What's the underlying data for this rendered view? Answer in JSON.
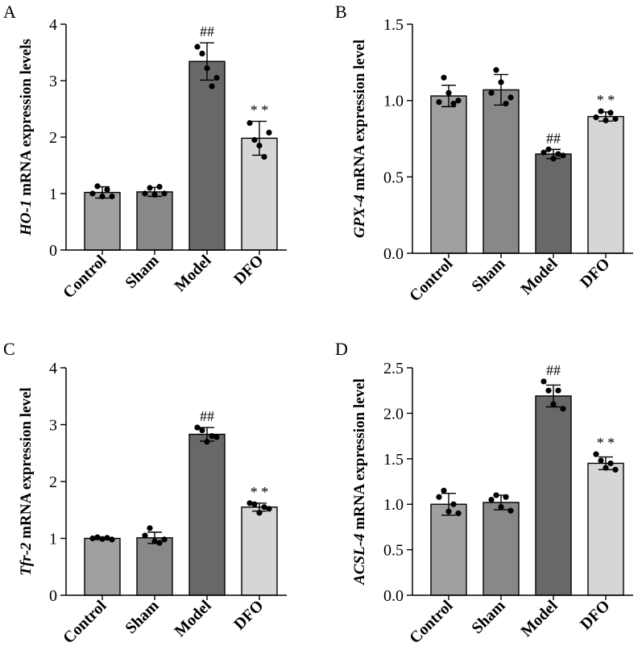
{
  "figure": {
    "panels": [
      "A",
      "B",
      "C",
      "D"
    ]
  },
  "chart_data": [
    {
      "panel": "A",
      "type": "bar",
      "gene": "HO-1",
      "ylabel_rest": " mRNA expression levels",
      "categories": [
        "Control",
        "Sham",
        "Model",
        "DFO"
      ],
      "values": [
        1.02,
        1.03,
        3.34,
        1.98
      ],
      "errors": [
        0.1,
        0.08,
        0.33,
        0.3
      ],
      "points": [
        [
          1.0,
          1.13,
          0.95,
          1.07,
          0.95
        ],
        [
          1.0,
          1.1,
          0.98,
          1.12,
          1.0
        ],
        [
          3.6,
          3.48,
          3.22,
          2.9,
          3.05
        ],
        [
          2.25,
          1.95,
          1.85,
          1.65,
          2.08
        ]
      ],
      "annotations": [
        "",
        "",
        "##",
        "* *"
      ],
      "colors": [
        "#a0a0a0",
        "#888888",
        "#686868",
        "#d6d6d6"
      ],
      "ylim": [
        0,
        4
      ],
      "yticks": [
        0,
        1,
        2,
        3,
        4
      ],
      "yticklabels": [
        "0",
        "1",
        "2",
        "3",
        "4"
      ]
    },
    {
      "panel": "B",
      "type": "bar",
      "gene": "GPX-4",
      "ylabel_rest": " mRNA expression level",
      "categories": [
        "Control",
        "Sham",
        "Model",
        "DFO"
      ],
      "values": [
        1.03,
        1.07,
        0.65,
        0.895
      ],
      "errors": [
        0.07,
        0.1,
        0.03,
        0.03
      ],
      "points": [
        [
          0.99,
          1.15,
          1.05,
          0.98,
          1.0
        ],
        [
          1.05,
          1.2,
          1.12,
          0.98,
          1.02
        ],
        [
          0.66,
          0.68,
          0.62,
          0.65,
          0.64
        ],
        [
          0.89,
          0.93,
          0.87,
          0.92,
          0.88
        ]
      ],
      "annotations": [
        "",
        "",
        "##",
        "* *"
      ],
      "colors": [
        "#a0a0a0",
        "#888888",
        "#686868",
        "#d6d6d6"
      ],
      "ylim": [
        0,
        1.5
      ],
      "yticks": [
        0,
        0.5,
        1.0,
        1.5
      ],
      "yticklabels": [
        "0.0",
        "0.5",
        "1.0",
        "1.5"
      ]
    },
    {
      "panel": "C",
      "type": "bar",
      "gene": "Tfr-2",
      "ylabel_rest": " mRNA expression level",
      "categories": [
        "Control",
        "Sham",
        "Model",
        "DFO"
      ],
      "values": [
        1.0,
        1.01,
        2.83,
        1.55
      ],
      "errors": [
        0.02,
        0.1,
        0.12,
        0.07
      ],
      "points": [
        [
          1.0,
          1.02,
          0.99,
          1.01,
          0.98
        ],
        [
          1.05,
          1.18,
          0.95,
          0.92,
          0.98
        ],
        [
          2.95,
          2.9,
          2.7,
          2.8,
          2.78
        ],
        [
          1.62,
          1.6,
          1.45,
          1.55,
          1.52
        ]
      ],
      "annotations": [
        "",
        "",
        "##",
        "* *"
      ],
      "colors": [
        "#a0a0a0",
        "#888888",
        "#686868",
        "#d6d6d6"
      ],
      "ylim": [
        0,
        4
      ],
      "yticks": [
        0,
        1,
        2,
        3,
        4
      ],
      "yticklabels": [
        "0",
        "1",
        "2",
        "3",
        "4"
      ]
    },
    {
      "panel": "D",
      "type": "bar",
      "gene": "ACSL-4",
      "ylabel_rest": " mRNA expression level",
      "categories": [
        "Control",
        "Sham",
        "Model",
        "DFO"
      ],
      "values": [
        1.0,
        1.02,
        2.19,
        1.45
      ],
      "errors": [
        0.12,
        0.08,
        0.12,
        0.07
      ],
      "points": [
        [
          1.08,
          1.15,
          0.92,
          1.0,
          0.9
        ],
        [
          1.05,
          1.1,
          0.97,
          1.08,
          0.93
        ],
        [
          2.35,
          2.25,
          2.1,
          2.25,
          2.05
        ],
        [
          1.55,
          1.48,
          1.4,
          1.45,
          1.38
        ]
      ],
      "annotations": [
        "",
        "",
        "##",
        "* *"
      ],
      "colors": [
        "#a0a0a0",
        "#888888",
        "#686868",
        "#d6d6d6"
      ],
      "ylim": [
        0,
        2.5
      ],
      "yticks": [
        0,
        0.5,
        1.0,
        1.5,
        2.0,
        2.5
      ],
      "yticklabels": [
        "0.0",
        "0.5",
        "1.0",
        "1.5",
        "2.0",
        "2.5"
      ]
    }
  ]
}
